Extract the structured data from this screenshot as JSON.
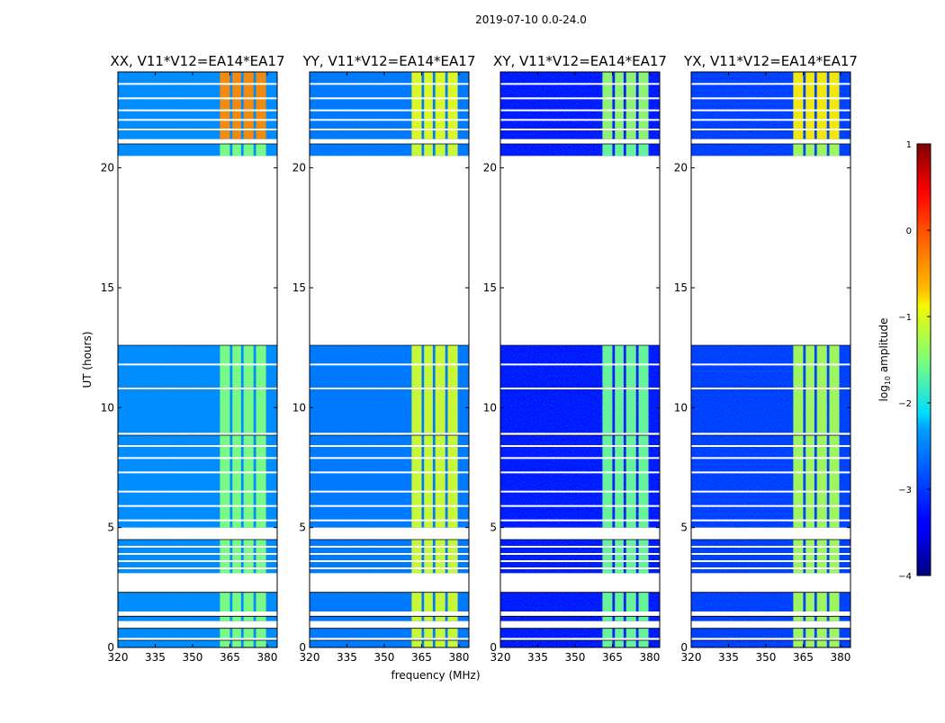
{
  "chart_data": {
    "type": "heatmap",
    "title": "2019-07-10 0.0-24.0",
    "xlabel": "frequency (MHz)",
    "ylabel": "UT (hours)",
    "xlim": [
      320,
      384
    ],
    "ylim": [
      0,
      24
    ],
    "xticks": [
      "320",
      "335",
      "350",
      "365",
      "380"
    ],
    "xtick_values": [
      320,
      335,
      350,
      365,
      380
    ],
    "yticks": [
      "0",
      "5",
      "10",
      "15",
      "20"
    ],
    "ytick_values": [
      0,
      5,
      10,
      15,
      20
    ],
    "colorbar": {
      "label_prefix": "log",
      "label_sub": "10",
      "label_suffix": " amplitude",
      "range": [
        -4,
        1
      ],
      "colormap": "jet",
      "ticks": [
        "1",
        "0",
        "−1",
        "−2",
        "−3",
        "−4"
      ],
      "tick_values": [
        1,
        0,
        -1,
        -2,
        -3,
        -4
      ]
    },
    "data_time_segments_hours": [
      [
        0,
        0.3
      ],
      [
        0.4,
        0.8
      ],
      [
        1.1,
        1.3
      ],
      [
        1.5,
        2.3
      ],
      [
        3.1,
        4.5
      ],
      [
        5.0,
        8.85
      ],
      [
        8.95,
        12.6
      ],
      [
        20.5,
        21.0
      ],
      [
        21.2,
        24.0
      ]
    ],
    "white_line_hours": [
      3.3,
      3.6,
      3.9,
      4.2,
      5.3,
      5.9,
      6.5,
      7.3,
      7.9,
      8.4,
      10.8,
      11.8,
      21.6,
      22.0,
      22.4,
      22.9,
      23.5
    ],
    "band_sub_ranges_mhz": [
      [
        361,
        365
      ],
      [
        366,
        369.5
      ],
      [
        370.5,
        374.5
      ],
      [
        375.5,
        379.5
      ]
    ],
    "panels": [
      {
        "title": "XX, V11*V12=EA14*EA17",
        "base_level": -2.7,
        "band_level": -1.5,
        "band_level_late": -0.3
      },
      {
        "title": "YY, V11*V12=EA14*EA17",
        "base_level": -2.8,
        "band_level": -1.1,
        "band_level_late": -1.0
      },
      {
        "title": "XY, V11*V12=EA14*EA17",
        "base_level": -3.3,
        "band_level": -1.6,
        "band_level_late": -1.4
      },
      {
        "title": "YX, V11*V12=EA14*EA17",
        "base_level": -3.1,
        "band_level": -1.3,
        "band_level_late": -0.8
      }
    ]
  }
}
